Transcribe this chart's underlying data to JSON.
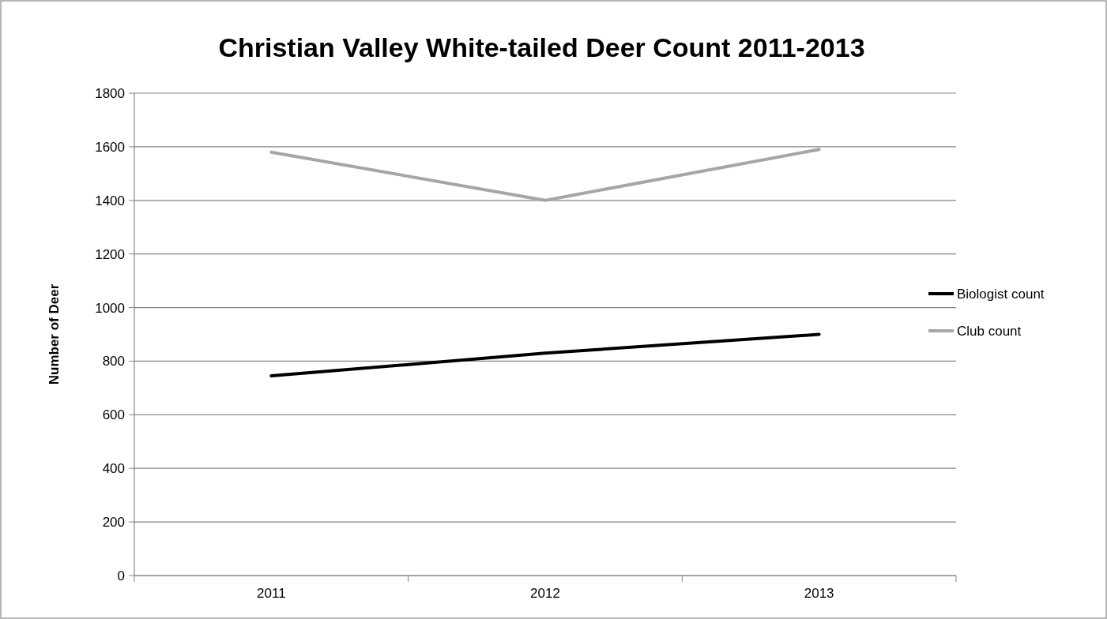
{
  "chart_data": {
    "type": "line",
    "title": "Christian Valley White-tailed Deer Count  2011-2013",
    "ylabel": "Number of Deer",
    "categories": [
      "2011",
      "2012",
      "2013"
    ],
    "series": [
      {
        "name": "Biologist count",
        "color": "#000000",
        "values": [
          745,
          830,
          900
        ]
      },
      {
        "name": "Club count",
        "color": "#a6a6a6",
        "values": [
          1580,
          1400,
          1590
        ]
      }
    ],
    "ylim": [
      0,
      1800
    ],
    "yticks": [
      0,
      200,
      400,
      600,
      800,
      1000,
      1200,
      1400,
      1600,
      1800
    ],
    "grid": "y",
    "legend": "right",
    "marker": "none",
    "line_style": "solid"
  }
}
